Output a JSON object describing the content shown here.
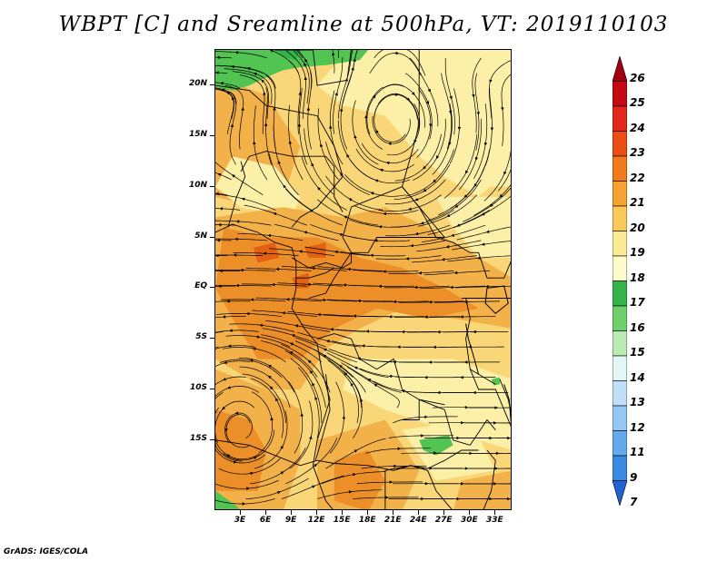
{
  "title": "WBPT [C] and Sreamline at 500hPa, VT: 2019110103",
  "footer": "GrADS: IGES/COLA",
  "map": {
    "lon_range": [
      0,
      35
    ],
    "lat_range": [
      -22,
      23.5
    ],
    "lat_labels": [
      {
        "lat": 20,
        "label": "20N"
      },
      {
        "lat": 15,
        "label": "15N"
      },
      {
        "lat": 10,
        "label": "10N"
      },
      {
        "lat": 5,
        "label": "5N"
      },
      {
        "lat": 0,
        "label": "EQ"
      },
      {
        "lat": -5,
        "label": "5S"
      },
      {
        "lat": -10,
        "label": "10S"
      },
      {
        "lat": -15,
        "label": "15S"
      }
    ],
    "lon_labels": [
      {
        "lon": 3,
        "label": "3E"
      },
      {
        "lon": 6,
        "label": "6E"
      },
      {
        "lon": 9,
        "label": "9E"
      },
      {
        "lon": 12,
        "label": "12E"
      },
      {
        "lon": 15,
        "label": "15E"
      },
      {
        "lon": 18,
        "label": "18E"
      },
      {
        "lon": 21,
        "label": "21E"
      },
      {
        "lon": 24,
        "label": "24E"
      },
      {
        "lon": 27,
        "label": "27E"
      },
      {
        "lon": 30,
        "label": "30E"
      },
      {
        "lon": 33,
        "label": "33E"
      }
    ],
    "colors": {
      "c17": "#52c452",
      "c18": "#34b34a",
      "c19": "#fcf0a8",
      "c20": "#f9d677",
      "c21": "#f3b14a",
      "c22": "#ed8f28",
      "c23": "#e26113",
      "streamline": "#000000",
      "border": "#000000"
    }
  },
  "colorbar": {
    "levels": [
      "26",
      "25",
      "24",
      "23",
      "22",
      "21",
      "20",
      "19",
      "18",
      "17",
      "16",
      "15",
      "14",
      "13",
      "12",
      "11",
      "9",
      "7"
    ],
    "colors": [
      "#a10010",
      "#c50a12",
      "#e2281c",
      "#ec4f14",
      "#f07a1c",
      "#f5a32e",
      "#f9c95a",
      "#fbeb94",
      "#fdfccb",
      "#34b34a",
      "#6fcf6a",
      "#b9ecb3",
      "#e3f6f6",
      "#bfe0f8",
      "#94c8f3",
      "#64aaee",
      "#3a8ae4",
      "#1f62d0"
    ]
  }
}
